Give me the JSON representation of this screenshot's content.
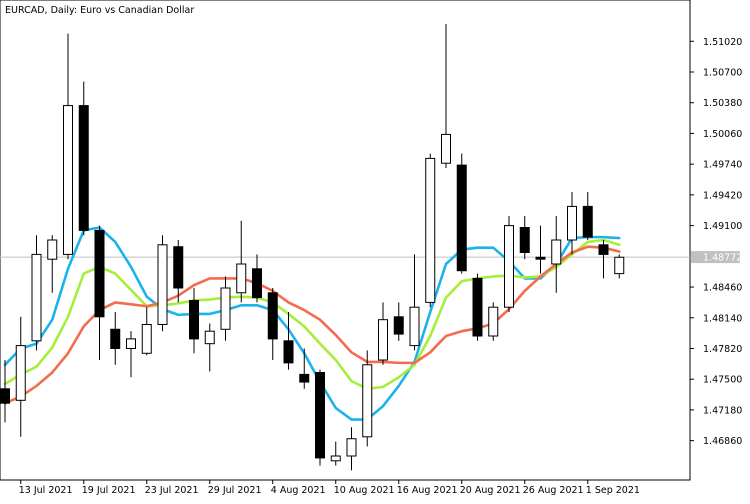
{
  "window": {
    "title": "EURCAD, Daily:  Euro vs Canadian Dollar",
    "current_price_label": "1.48772"
  },
  "chart_data": {
    "type": "candlestick",
    "title": "EURCAD, Daily:  Euro vs Canadian Dollar",
    "symbol": "EURCAD",
    "timeframe": "Daily",
    "description": "Euro vs Canadian Dollar",
    "ylim": [
      1.4645,
      1.5145
    ],
    "y_ticks": [
      "1.51020",
      "1.50700",
      "1.50380",
      "1.50060",
      "1.49740",
      "1.49420",
      "1.49100",
      "1.48772",
      "1.48460",
      "1.48140",
      "1.47820",
      "1.47500",
      "1.47180",
      "1.46860"
    ],
    "x_ticks": [
      {
        "date": "2021-07-13",
        "label": "13 Jul 2021"
      },
      {
        "date": "2021-07-19",
        "label": "19 Jul 2021"
      },
      {
        "date": "2021-07-23",
        "label": "23 Jul 2021"
      },
      {
        "date": "2021-07-29",
        "label": "29 Jul 2021"
      },
      {
        "date": "2021-08-04",
        "label": "4 Aug 2021"
      },
      {
        "date": "2021-08-10",
        "label": "10 Aug 2021"
      },
      {
        "date": "2021-08-16",
        "label": "16 Aug 2021"
      },
      {
        "date": "2021-08-20",
        "label": "20 Aug 2021"
      },
      {
        "date": "2021-08-26",
        "label": "26 Aug 2021"
      },
      {
        "date": "2021-09-01",
        "label": "1 Sep 2021"
      }
    ],
    "candles": [
      {
        "date": "2021-07-12",
        "o": 1.474,
        "h": 1.477,
        "l": 1.4705,
        "c": 1.4725
      },
      {
        "date": "2021-07-13",
        "o": 1.4728,
        "h": 1.4815,
        "l": 1.469,
        "c": 1.4785
      },
      {
        "date": "2021-07-14",
        "o": 1.479,
        "h": 1.49,
        "l": 1.478,
        "c": 1.488
      },
      {
        "date": "2021-07-15",
        "o": 1.4875,
        "h": 1.49,
        "l": 1.484,
        "c": 1.4895
      },
      {
        "date": "2021-07-16",
        "o": 1.488,
        "h": 1.511,
        "l": 1.4875,
        "c": 1.5035
      },
      {
        "date": "2021-07-19",
        "o": 1.5035,
        "h": 1.506,
        "l": 1.49,
        "c": 1.4905
      },
      {
        "date": "2021-07-20",
        "o": 1.4905,
        "h": 1.491,
        "l": 1.477,
        "c": 1.4815
      },
      {
        "date": "2021-07-21",
        "o": 1.4802,
        "h": 1.482,
        "l": 1.4765,
        "c": 1.4782
      },
      {
        "date": "2021-07-22",
        "o": 1.4782,
        "h": 1.48,
        "l": 1.4752,
        "c": 1.4792
      },
      {
        "date": "2021-07-23",
        "o": 1.4777,
        "h": 1.4825,
        "l": 1.4775,
        "c": 1.4807
      },
      {
        "date": "2021-07-26",
        "o": 1.4807,
        "h": 1.49,
        "l": 1.48,
        "c": 1.489
      },
      {
        "date": "2021-07-27",
        "o": 1.4888,
        "h": 1.4895,
        "l": 1.483,
        "c": 1.4845
      },
      {
        "date": "2021-07-28",
        "o": 1.4832,
        "h": 1.4845,
        "l": 1.4777,
        "c": 1.4792
      },
      {
        "date": "2021-07-29",
        "o": 1.4787,
        "h": 1.4808,
        "l": 1.4758,
        "c": 1.48
      },
      {
        "date": "2021-07-30",
        "o": 1.4802,
        "h": 1.4857,
        "l": 1.479,
        "c": 1.4845
      },
      {
        "date": "2021-08-02",
        "o": 1.484,
        "h": 1.4915,
        "l": 1.483,
        "c": 1.487
      },
      {
        "date": "2021-08-03",
        "o": 1.4865,
        "h": 1.488,
        "l": 1.483,
        "c": 1.4835
      },
      {
        "date": "2021-08-04",
        "o": 1.484,
        "h": 1.4845,
        "l": 1.477,
        "c": 1.4792
      },
      {
        "date": "2021-08-05",
        "o": 1.479,
        "h": 1.482,
        "l": 1.476,
        "c": 1.4767
      },
      {
        "date": "2021-08-06",
        "o": 1.4755,
        "h": 1.4782,
        "l": 1.474,
        "c": 1.4747
      },
      {
        "date": "2021-08-09",
        "o": 1.4757,
        "h": 1.476,
        "l": 1.466,
        "c": 1.4668
      },
      {
        "date": "2021-08-10",
        "o": 1.4665,
        "h": 1.4685,
        "l": 1.466,
        "c": 1.467
      },
      {
        "date": "2021-08-11",
        "o": 1.467,
        "h": 1.47,
        "l": 1.4655,
        "c": 1.4688
      },
      {
        "date": "2021-08-12",
        "o": 1.469,
        "h": 1.478,
        "l": 1.468,
        "c": 1.4765
      },
      {
        "date": "2021-08-13",
        "o": 1.477,
        "h": 1.483,
        "l": 1.4765,
        "c": 1.4812
      },
      {
        "date": "2021-08-16",
        "o": 1.4815,
        "h": 1.483,
        "l": 1.479,
        "c": 1.4797
      },
      {
        "date": "2021-08-17",
        "o": 1.4785,
        "h": 1.488,
        "l": 1.478,
        "c": 1.4825
      },
      {
        "date": "2021-08-18",
        "o": 1.483,
        "h": 1.4985,
        "l": 1.4825,
        "c": 1.498
      },
      {
        "date": "2021-08-19",
        "o": 1.4975,
        "h": 1.512,
        "l": 1.497,
        "c": 1.5005
      },
      {
        "date": "2021-08-20",
        "o": 1.4973,
        "h": 1.4985,
        "l": 1.486,
        "c": 1.4863
      },
      {
        "date": "2021-08-23",
        "o": 1.4855,
        "h": 1.486,
        "l": 1.479,
        "c": 1.4795
      },
      {
        "date": "2021-08-24",
        "o": 1.4795,
        "h": 1.483,
        "l": 1.479,
        "c": 1.4825
      },
      {
        "date": "2021-08-25",
        "o": 1.4825,
        "h": 1.492,
        "l": 1.482,
        "c": 1.491
      },
      {
        "date": "2021-08-26",
        "o": 1.4908,
        "h": 1.492,
        "l": 1.4875,
        "c": 1.4882
      },
      {
        "date": "2021-08-27",
        "o": 1.4877,
        "h": 1.491,
        "l": 1.486,
        "c": 1.4875
      },
      {
        "date": "2021-08-30",
        "o": 1.487,
        "h": 1.492,
        "l": 1.484,
        "c": 1.4895
      },
      {
        "date": "2021-08-31",
        "o": 1.4895,
        "h": 1.4945,
        "l": 1.488,
        "c": 1.493
      },
      {
        "date": "2021-09-01",
        "o": 1.493,
        "h": 1.4945,
        "l": 1.4895,
        "c": 1.4898
      },
      {
        "date": "2021-09-02",
        "o": 1.489,
        "h": 1.4895,
        "l": 1.4855,
        "c": 1.488
      },
      {
        "date": "2021-09-03",
        "o": 1.486,
        "h": 1.488,
        "l": 1.4855,
        "c": 1.4877
      }
    ],
    "series": [
      {
        "color": "#1ab3ec",
        "values": [
          1.4765,
          1.4782,
          1.4787,
          1.4812,
          1.4865,
          1.4905,
          1.4908,
          1.4893,
          1.4867,
          1.4836,
          1.4823,
          1.4817,
          1.4818,
          1.4818,
          1.4822,
          1.4827,
          1.4827,
          1.4822,
          1.4802,
          1.4777,
          1.4747,
          1.472,
          1.4708,
          1.4708,
          1.4722,
          1.4743,
          1.4768,
          1.482,
          1.487,
          1.4885,
          1.4887,
          1.4887,
          1.4873,
          1.4855,
          1.4855,
          1.487,
          1.4897,
          1.4898,
          1.4898,
          1.4897
        ]
      },
      {
        "color": "#a6ee3c",
        "values": [
          1.4745,
          1.4755,
          1.4763,
          1.4783,
          1.4815,
          1.486,
          1.4867,
          1.486,
          1.4843,
          1.4826,
          1.4827,
          1.4829,
          1.4832,
          1.4833,
          1.4835,
          1.4836,
          1.4835,
          1.483,
          1.4818,
          1.4805,
          1.4787,
          1.477,
          1.4748,
          1.474,
          1.4742,
          1.4752,
          1.4765,
          1.4795,
          1.4835,
          1.4852,
          1.4855,
          1.4857,
          1.4858,
          1.4856,
          1.4857,
          1.4867,
          1.488,
          1.4893,
          1.4895,
          1.489
        ]
      },
      {
        "color": "#f56b4e",
        "values": [
          1.4725,
          1.4732,
          1.4743,
          1.4757,
          1.4777,
          1.4805,
          1.4822,
          1.483,
          1.4828,
          1.4826,
          1.483,
          1.4837,
          1.4848,
          1.4855,
          1.4855,
          1.4855,
          1.485,
          1.4842,
          1.483,
          1.4822,
          1.4812,
          1.4796,
          1.4778,
          1.4768,
          1.4768,
          1.4767,
          1.4767,
          1.4778,
          1.4795,
          1.48,
          1.4803,
          1.4808,
          1.4823,
          1.4842,
          1.4857,
          1.487,
          1.4882,
          1.4888,
          1.4887,
          1.4883
        ]
      }
    ],
    "current_price": 1.48772,
    "grid": false,
    "legend": "none"
  }
}
